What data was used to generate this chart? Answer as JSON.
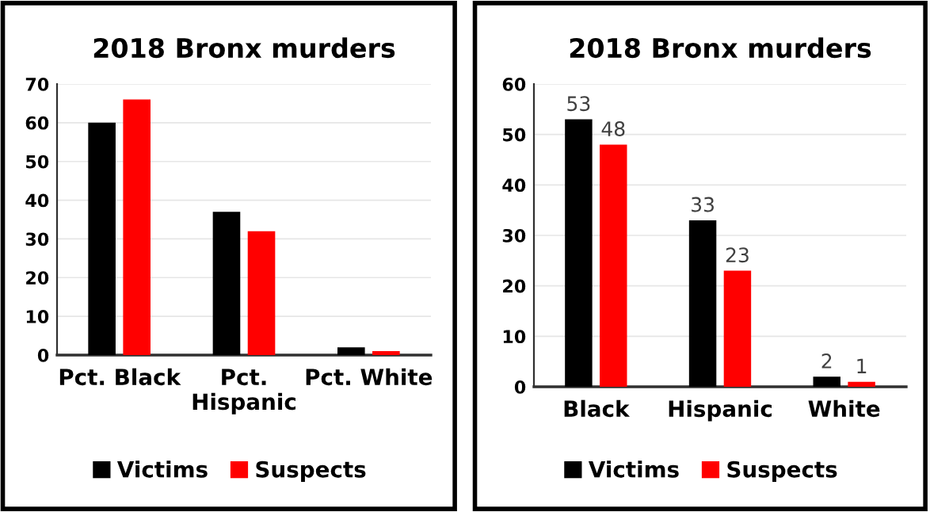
{
  "chart_data": [
    {
      "type": "bar",
      "title": "2018 Bronx murders",
      "categories": [
        "Pct. Black",
        "Pct.\nHispanic",
        "Pct. White"
      ],
      "series": [
        {
          "name": "Victims",
          "color": "#000000",
          "values": [
            60,
            37,
            2
          ]
        },
        {
          "name": "Suspects",
          "color": "#ff0000",
          "values": [
            66,
            32,
            1
          ]
        }
      ],
      "ylim": [
        0,
        70
      ],
      "yticks": [
        0,
        10,
        20,
        30,
        40,
        50,
        60,
        70
      ],
      "grid": "y",
      "legend": "bottom"
    },
    {
      "type": "bar",
      "title": "2018 Bronx murders",
      "categories": [
        "Black",
        "Hispanic",
        "White"
      ],
      "series": [
        {
          "name": "Victims",
          "color": "#000000",
          "values": [
            53,
            33,
            2
          ]
        },
        {
          "name": "Suspects",
          "color": "#ff0000",
          "values": [
            48,
            23,
            1
          ]
        }
      ],
      "ylim": [
        0,
        60
      ],
      "yticks": [
        0,
        10,
        20,
        30,
        40,
        50,
        60
      ],
      "grid": "y",
      "legend": "bottom",
      "data_labels": true
    }
  ]
}
